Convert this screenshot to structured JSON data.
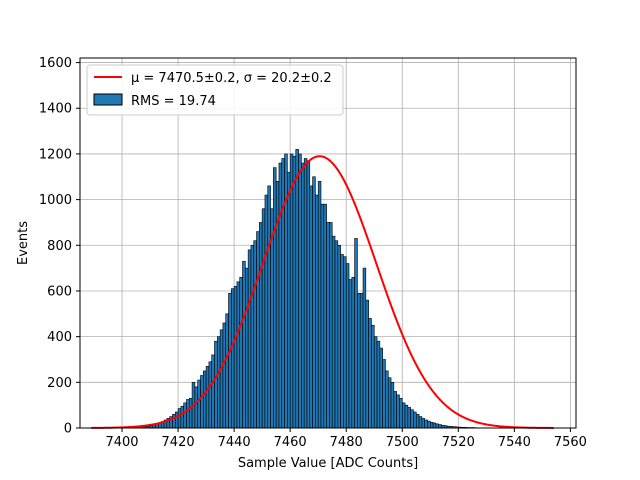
{
  "chart_data": {
    "type": "bar",
    "title": "",
    "xlabel": "Sample Value [ADC Counts]",
    "ylabel": "Events",
    "xlim": [
      7385,
      7562
    ],
    "ylim": [
      0,
      1620
    ],
    "x_ticks": [
      7400,
      7420,
      7440,
      7460,
      7480,
      7500,
      7520,
      7540,
      7560
    ],
    "y_ticks": [
      0,
      200,
      400,
      600,
      800,
      1000,
      1200,
      1400,
      1600
    ],
    "grid": true,
    "legend_position": "top-left",
    "legend": {
      "fit_label": "μ = 7470.5±0.2, σ = 20.2±0.2",
      "hist_label": "RMS = 19.74"
    },
    "colors": {
      "bars": "#1f77b4",
      "bar_edge": "#000000",
      "fit": "#ff0000",
      "grid": "#b0b0b0"
    },
    "histogram": {
      "bin_width": 1,
      "bin_start": 7405,
      "counts": [
        3,
        4,
        5,
        6,
        8,
        10,
        14,
        18,
        22,
        28,
        35,
        42,
        50,
        60,
        70,
        85,
        95,
        110,
        125,
        130,
        200,
        180,
        210,
        230,
        250,
        270,
        290,
        320,
        380,
        400,
        430,
        460,
        500,
        590,
        610,
        620,
        640,
        660,
        730,
        700,
        780,
        800,
        820,
        860,
        900,
        960,
        1020,
        1060,
        960,
        1140,
        1080,
        1160,
        1180,
        1200,
        1120,
        1200,
        1190,
        1220,
        1200,
        1160,
        1180,
        1170,
        1060,
        1100,
        1020,
        1080,
        980,
        980,
        900,
        900,
        840,
        820,
        800,
        760,
        750,
        720,
        650,
        660,
        830,
        590,
        590,
        700,
        560,
        480,
        450,
        400,
        380,
        350,
        300,
        250,
        220,
        200,
        160,
        145,
        130,
        110,
        100,
        90,
        80,
        70,
        60,
        50,
        42,
        35,
        30,
        25,
        22,
        18,
        15,
        12,
        10,
        8,
        7,
        6,
        5,
        4,
        3,
        3,
        2,
        2,
        2,
        1,
        1
      ]
    },
    "fit": {
      "type": "gaussian",
      "mu": 7470.5,
      "sigma": 20.2,
      "amplitude": 1190,
      "x_range": [
        7389,
        7554
      ]
    }
  }
}
